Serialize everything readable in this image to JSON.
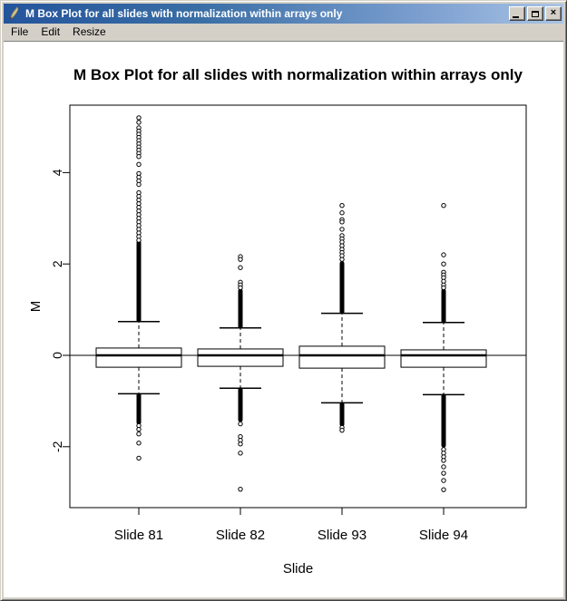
{
  "window": {
    "title": "M Box Plot for all slides with normalization within arrays only",
    "icon": "quill-icon",
    "controls": [
      {
        "name": "minimize",
        "label": "minimize"
      },
      {
        "name": "maximize",
        "label": "maximize"
      },
      {
        "name": "close",
        "label": "close"
      }
    ]
  },
  "menubar": {
    "items": [
      {
        "label": "File"
      },
      {
        "label": "Edit"
      },
      {
        "label": "Resize"
      }
    ]
  },
  "colors": {
    "titlebar_left": "#24549c",
    "titlebar_right": "#a9c4e4",
    "chrome": "#d4d0c8",
    "canvas": "#ffffff",
    "plot_foreground": "#000000"
  },
  "chart_data": {
    "type": "boxplot",
    "title": "M Box Plot for all slides with normalization within arrays only",
    "xlabel": "Slide",
    "ylabel": "M",
    "categories": [
      "Slide 81",
      "Slide 82",
      "Slide 93",
      "Slide 94"
    ],
    "ylim": [
      -3.33,
      5.48
    ],
    "yticks": [
      -2,
      0,
      2,
      4
    ],
    "reference_line": 0,
    "grid": false,
    "series": [
      {
        "name": "Slide 81",
        "q1": -0.26,
        "median": 0.0,
        "q3": 0.16,
        "whisker_low": -0.84,
        "whisker_high": 0.74,
        "outlier_runs": [
          [
            0.76,
            2.48
          ],
          [
            -1.48,
            -0.86
          ]
        ],
        "outliers": [
          5.2,
          5.1,
          4.98,
          4.91,
          4.84,
          4.77,
          4.7,
          4.63,
          4.56,
          4.49,
          4.42,
          4.35,
          4.18,
          3.98,
          3.9,
          3.82,
          3.74,
          3.56,
          3.48,
          3.4,
          3.32,
          3.24,
          3.16,
          3.08,
          3.0,
          2.92,
          2.84,
          2.76,
          2.68,
          2.6,
          2.52,
          -1.54,
          -1.62,
          -1.72,
          -1.92,
          -2.25
        ]
      },
      {
        "name": "Slide 82",
        "q1": -0.24,
        "median": 0.0,
        "q3": 0.14,
        "whisker_low": -0.72,
        "whisker_high": 0.6,
        "outlier_runs": [
          [
            0.62,
            1.42
          ],
          [
            -1.42,
            -0.74
          ]
        ],
        "outliers": [
          2.16,
          2.1,
          1.92,
          1.6,
          1.54,
          1.48,
          -1.5,
          -1.78,
          -1.86,
          -1.94,
          -2.14,
          -2.93
        ]
      },
      {
        "name": "Slide 93",
        "q1": -0.28,
        "median": 0.0,
        "q3": 0.2,
        "whisker_low": -1.04,
        "whisker_high": 0.92,
        "outlier_runs": [
          [
            0.94,
            2.02
          ],
          [
            -1.52,
            -1.06
          ]
        ],
        "outliers": [
          3.28,
          3.12,
          2.97,
          2.92,
          2.76,
          2.62,
          2.55,
          2.48,
          2.4,
          2.32,
          2.25,
          2.18,
          2.1,
          -1.58,
          -1.64
        ]
      },
      {
        "name": "Slide 94",
        "q1": -0.26,
        "median": 0.0,
        "q3": 0.12,
        "whisker_low": -0.86,
        "whisker_high": 0.72,
        "outlier_runs": [
          [
            0.74,
            1.42
          ],
          [
            -1.98,
            -0.88
          ]
        ],
        "outliers": [
          3.28,
          2.2,
          2.0,
          1.82,
          1.76,
          1.7,
          1.62,
          1.54,
          1.48,
          -2.06,
          -2.14,
          -2.22,
          -2.3,
          -2.44,
          -2.58,
          -2.74,
          -2.94
        ]
      }
    ]
  }
}
